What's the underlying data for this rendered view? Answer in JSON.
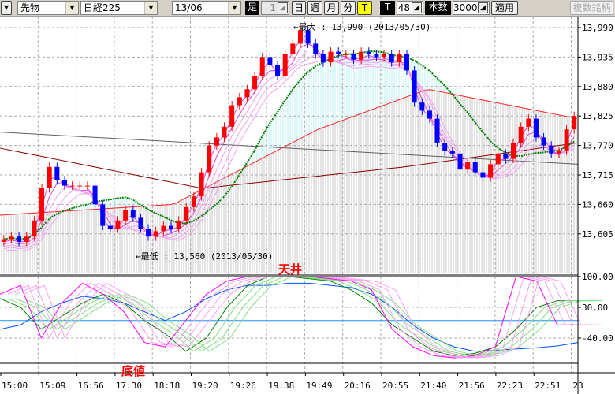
{
  "toolbar": {
    "market": "先物",
    "symbol": "日経225",
    "contract": "13/06",
    "bar_label": "足",
    "bar_value": "1",
    "period_buttons": [
      "日",
      "週",
      "月",
      "分",
      "T"
    ],
    "active_period": "T",
    "tick_label": "T",
    "tick_value": "48",
    "count_label": "本数",
    "count_value": "3000",
    "apply": "適用",
    "multi": "複数銘柄"
  },
  "chart_data": {
    "type": "candlestick",
    "price_axis": {
      "ticks": [
        "13,990",
        "13,935",
        "13,880",
        "13,825",
        "13,770",
        "13,715",
        "13,660",
        "13,605"
      ],
      "ylim": [
        13550,
        14010
      ]
    },
    "osc_axis": {
      "ticks": [
        "100.00",
        "30.00",
        "-40.00"
      ],
      "ylim": [
        -100,
        105
      ]
    },
    "x_ticks": [
      "15:00",
      "15:09",
      "16:56",
      "17:30",
      "18:18",
      "19:20",
      "19:26",
      "19:38",
      "19:49",
      "20:16",
      "20:55",
      "21:40",
      "21:56",
      "22:23",
      "22:51",
      "23"
    ],
    "closes": [
      13595,
      13600,
      13590,
      13600,
      13630,
      13690,
      13730,
      13705,
      13695,
      13695,
      13695,
      13695,
      13660,
      13620,
      13615,
      13630,
      13650,
      13635,
      13615,
      13600,
      13610,
      13620,
      13615,
      13630,
      13655,
      13675,
      13720,
      13770,
      13785,
      13805,
      13845,
      13860,
      13875,
      13900,
      13935,
      13920,
      13900,
      13940,
      13960,
      13985,
      13960,
      13940,
      13925,
      13945,
      13940,
      13940,
      13930,
      13945,
      13940,
      13935,
      13940,
      13925,
      13940,
      13910,
      13850,
      13835,
      13820,
      13775,
      13760,
      13755,
      13725,
      13740,
      13720,
      13710,
      13735,
      13755,
      13745,
      13775,
      13805,
      13820,
      13785,
      13770,
      13755,
      13760,
      13800,
      13825
    ],
    "indicators": {
      "ma_long_gray": [
        13795,
        13735
      ],
      "ma_darkred": [
        [
          0,
          13765
        ],
        [
          0.35,
          13690
        ],
        [
          0.7,
          13730
        ],
        [
          1,
          13775
        ]
      ],
      "ma_red": [
        [
          0,
          13640
        ],
        [
          0.3,
          13660
        ],
        [
          0.55,
          13800
        ],
        [
          0.74,
          13875
        ],
        [
          1,
          13820
        ]
      ]
    },
    "oscillator": {
      "magenta": [
        60,
        80,
        -40,
        40,
        85,
        60,
        20,
        -50,
        -60,
        0,
        60,
        90,
        100,
        100,
        100,
        100,
        95,
        90,
        70,
        -20,
        -60,
        -80,
        -85,
        -80,
        -60,
        100,
        90,
        -10,
        -10
      ],
      "green": [
        50,
        30,
        -20,
        10,
        40,
        60,
        40,
        0,
        -30,
        -70,
        -40,
        30,
        80,
        100,
        100,
        95,
        90,
        70,
        40,
        -10,
        -40,
        -70,
        -80,
        -75,
        -60,
        -20,
        30,
        45,
        45
      ],
      "blue": [
        -20,
        -10,
        20,
        40,
        55,
        50,
        40,
        20,
        0,
        20,
        50,
        70,
        80,
        80,
        85,
        85,
        80,
        75,
        60,
        30,
        -10,
        -40,
        -60,
        -70,
        -68,
        -65,
        -62,
        -58,
        -50
      ]
    },
    "annotations": {
      "high": "←最大 : 13,990 (2013/05/30)",
      "low": "←最低 : 13,560 (2013/05/30)",
      "top": "天井",
      "bottom": "底値"
    }
  },
  "colors": {
    "up": "#ff0000",
    "down": "#0000ff",
    "ma_green": "#008000",
    "accent_yellow": "#ffff00"
  }
}
